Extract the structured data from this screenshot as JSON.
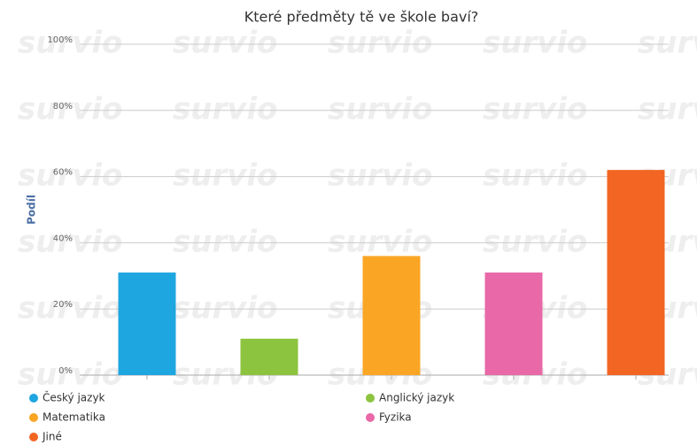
{
  "chart_data": {
    "type": "bar",
    "title": "Které předměty tě ve škole baví?",
    "y_label": "Podíl",
    "watermark": "survio",
    "categories": [
      "Český jazyk",
      "Anglický jazyk",
      "Matematika",
      "Fyzika",
      "Jiné"
    ],
    "values": [
      31,
      11,
      36,
      31,
      62
    ],
    "colors": [
      "#1ea6e0",
      "#8cc43f",
      "#faa624",
      "#e868a8",
      "#f26522"
    ],
    "ylim": [
      0,
      100
    ],
    "yticks": [
      {
        "value": 0,
        "label": "0%"
      },
      {
        "value": 20,
        "label": "20%"
      },
      {
        "value": 40,
        "label": "40%"
      },
      {
        "value": 60,
        "label": "60%"
      },
      {
        "value": 80,
        "label": "80%"
      },
      {
        "value": 100,
        "label": "100%"
      }
    ],
    "grid": true
  }
}
